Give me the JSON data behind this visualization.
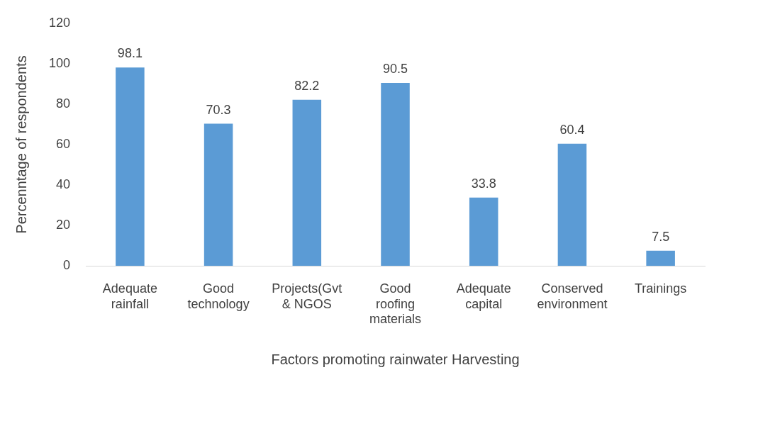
{
  "chart_data": {
    "type": "bar",
    "xlabel": "Factors promoting rainwater Harvesting",
    "ylabel": "Percenntage of respondents",
    "categories": [
      "Adequate rainfall",
      "Good technology",
      "Projects(Gvt & NGOS",
      "Good roofing materials",
      "Adequate capital",
      "Conserved environment",
      "Trainings"
    ],
    "values": [
      98.1,
      70.3,
      82.2,
      90.5,
      33.8,
      60.4,
      7.5
    ],
    "color": "#5b9bd5",
    "ylim": [
      0,
      120
    ],
    "yticks": [
      0,
      20,
      40,
      60,
      80,
      100,
      120
    ],
    "grid": false,
    "legend": false,
    "data_labels": true
  }
}
